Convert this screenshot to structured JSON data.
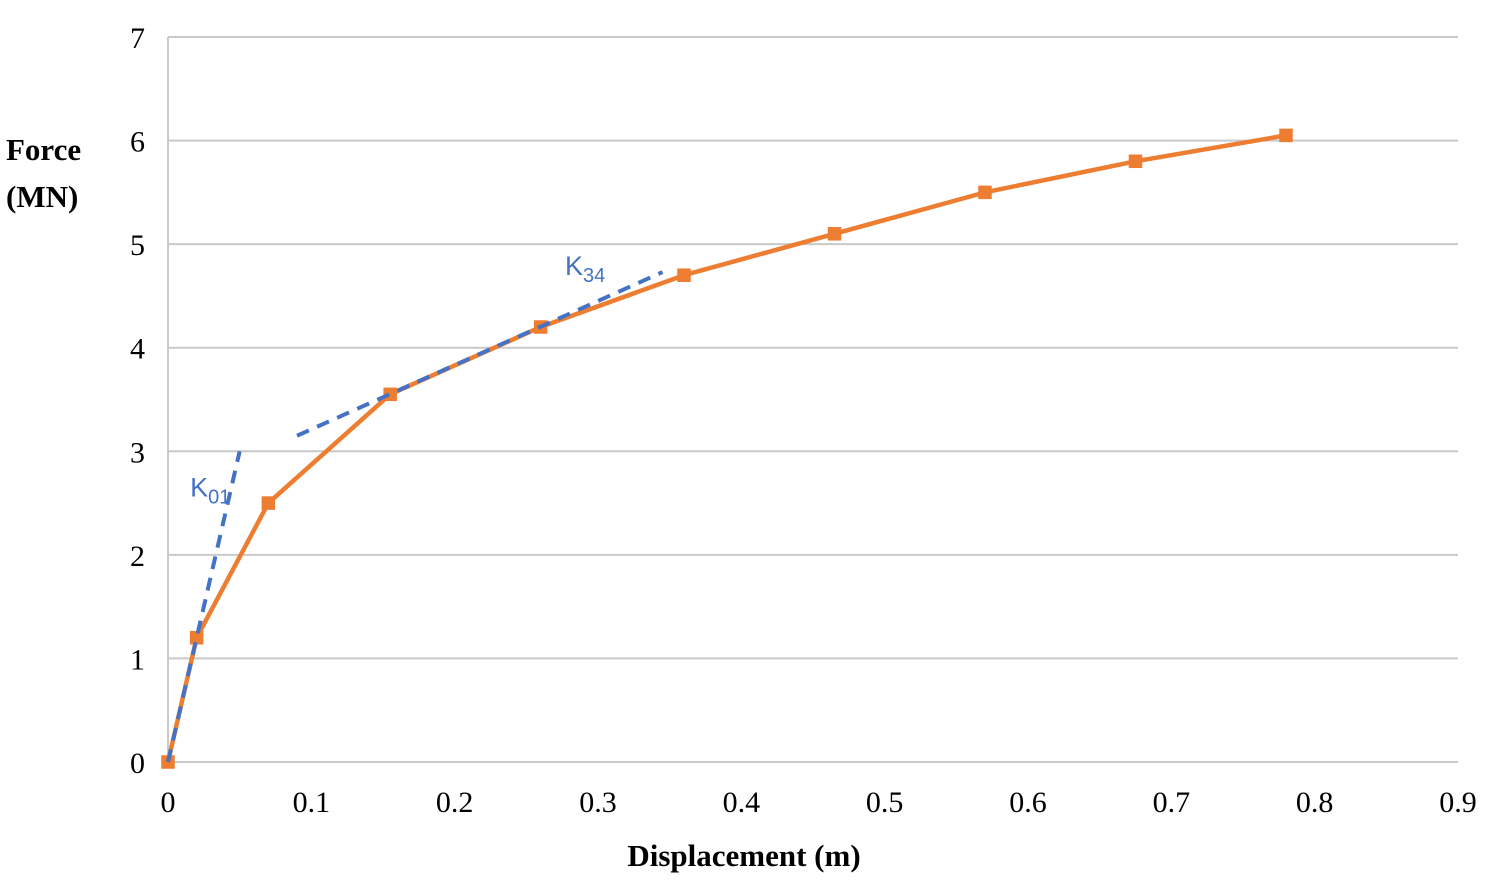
{
  "chart_data": {
    "type": "line",
    "title": "",
    "xlabel": "Displacement (m)",
    "ylabel": "Force (MN)",
    "ylabel_line1": "Force",
    "ylabel_line2": "(MN)",
    "xlim": [
      0,
      0.9
    ],
    "ylim": [
      0,
      7
    ],
    "grid": "horizontal-only",
    "legend": "none",
    "x_ticks": {
      "values": [
        0,
        0.1,
        0.2,
        0.3,
        0.4,
        0.5,
        0.6,
        0.7,
        0.8,
        0.9
      ],
      "labels": [
        "0",
        "0.1",
        "0.2",
        "0.3",
        "0.4",
        "0.5",
        "0.6",
        "0.7",
        "0.8",
        "0.9"
      ]
    },
    "y_ticks": {
      "values": [
        0,
        1,
        2,
        3,
        4,
        5,
        6,
        7
      ],
      "labels": [
        "0",
        "1",
        "2",
        "3",
        "4",
        "5",
        "6",
        "7"
      ]
    },
    "colors": {
      "curve": "#ED7D31",
      "stiffness_lines": "#4472C4",
      "grid": "#C9C9C9",
      "text": "#000000"
    },
    "series": [
      {
        "name": "force-displacement-curve",
        "style": "solid",
        "marker": "square",
        "color": "#ED7D31",
        "points": [
          [
            0,
            0
          ],
          [
            0.02,
            1.2
          ],
          [
            0.07,
            2.5
          ],
          [
            0.155,
            3.55
          ],
          [
            0.26,
            4.2
          ],
          [
            0.36,
            4.7
          ],
          [
            0.465,
            5.1
          ],
          [
            0.57,
            5.5
          ],
          [
            0.675,
            5.8
          ],
          [
            0.78,
            6.05
          ]
        ]
      },
      {
        "name": "k01-stiffness-line",
        "style": "dashed",
        "marker": "none",
        "color": "#4472C4",
        "points": [
          [
            0,
            0
          ],
          [
            0.05,
            3.0
          ]
        ]
      },
      {
        "name": "k34-stiffness-line",
        "style": "dashed",
        "marker": "none",
        "color": "#4472C4",
        "points": [
          [
            0.09,
            3.15
          ],
          [
            0.345,
            4.73
          ]
        ]
      }
    ],
    "annotations": [
      {
        "name": "k01-label",
        "main": "K",
        "sub": "01",
        "x": 0.0295,
        "y": 2.65,
        "color": "#4472C4"
      },
      {
        "name": "k34-label",
        "main": "K",
        "sub": "34",
        "x": 0.291,
        "y": 4.79,
        "color": "#4472C4"
      }
    ]
  }
}
